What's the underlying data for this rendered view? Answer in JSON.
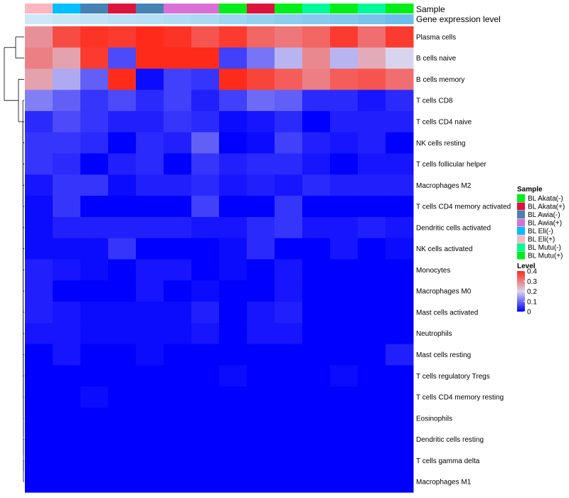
{
  "chart_data": {
    "type": "heatmap",
    "annotation_labels": [
      "Sample",
      "Gene expression level"
    ],
    "columns": [
      {
        "sample": "BL Eli(+)",
        "gene_expression_level": 0.18
      },
      {
        "sample": "BL Eli(-)",
        "gene_expression_level": 0.22
      },
      {
        "sample": "BL Awia(-)",
        "gene_expression_level": 0.26
      },
      {
        "sample": "BL Akata(+)",
        "gene_expression_level": 0.3
      },
      {
        "sample": "BL Awia(-)",
        "gene_expression_level": 0.34
      },
      {
        "sample": "BL Awia(+)",
        "gene_expression_level": 0.38
      },
      {
        "sample": "BL Awia(+)",
        "gene_expression_level": 0.42
      },
      {
        "sample": "BL Akata(-)",
        "gene_expression_level": 0.5
      },
      {
        "sample": "BL Akata(+)",
        "gene_expression_level": 0.56
      },
      {
        "sample": "BL Akata(-)",
        "gene_expression_level": 0.62
      },
      {
        "sample": "BL Mutu(-)",
        "gene_expression_level": 0.66
      },
      {
        "sample": "BL Akata(-)",
        "gene_expression_level": 0.7
      },
      {
        "sample": "BL Mutu(-)",
        "gene_expression_level": 0.76
      },
      {
        "sample": "BL Mutu(+)",
        "gene_expression_level": 0.84
      }
    ],
    "rows": [
      "Plasma cells",
      "B cells naive",
      "B cells memory",
      "T cells CD8",
      "T cells CD4 naive",
      "NK cells resting",
      "T cells follicular helper",
      "Macrophages M2",
      "T cells CD4 memory activated",
      "Dendritic cells activated",
      "NK cells activated",
      "Monocytes",
      "Macrophages M0",
      "Mast cells activated",
      "Neutrophils",
      "Mast cells resting",
      "T cells regulatory  Tregs",
      "T cells CD4 memory resting",
      "Eosinophils",
      "Dendritic cells resting",
      "T cells gamma delta",
      "Macrophages M1"
    ],
    "values": [
      [
        0.28,
        0.36,
        0.39,
        0.38,
        0.4,
        0.39,
        0.35,
        0.38,
        0.33,
        0.31,
        0.33,
        0.38,
        0.32,
        0.38
      ],
      [
        0.3,
        0.26,
        0.38,
        0.07,
        0.4,
        0.4,
        0.4,
        0.06,
        0.11,
        0.17,
        0.29,
        0.17,
        0.25,
        0.2
      ],
      [
        0.26,
        0.16,
        0.09,
        0.4,
        0.01,
        0.06,
        0.05,
        0.4,
        0.37,
        0.34,
        0.3,
        0.34,
        0.35,
        0.32
      ],
      [
        0.12,
        0.09,
        0.05,
        0.07,
        0.04,
        0.06,
        0.03,
        0.06,
        0.1,
        0.09,
        0.04,
        0.04,
        0.02,
        0.04
      ],
      [
        0.04,
        0.07,
        0.05,
        0.03,
        0.03,
        0.05,
        0.04,
        0.01,
        0.02,
        0.04,
        0.0,
        0.03,
        0.03,
        0.03
      ],
      [
        0.05,
        0.05,
        0.04,
        0.0,
        0.04,
        0.03,
        0.09,
        0.0,
        0.01,
        0.06,
        0.03,
        0.02,
        0.03,
        0.0
      ],
      [
        0.05,
        0.04,
        0.0,
        0.03,
        0.04,
        0.0,
        0.05,
        0.03,
        0.04,
        0.04,
        0.02,
        0.0,
        0.02,
        0.02
      ],
      [
        0.02,
        0.05,
        0.05,
        0.01,
        0.03,
        0.03,
        0.04,
        0.02,
        0.03,
        0.02,
        0.04,
        0.03,
        0.03,
        0.03
      ],
      [
        0.01,
        0.05,
        0.0,
        0.0,
        0.0,
        0.0,
        0.06,
        0.0,
        0.0,
        0.05,
        0.0,
        0.0,
        0.0,
        0.0
      ],
      [
        0.01,
        0.03,
        0.03,
        0.03,
        0.03,
        0.03,
        0.02,
        0.02,
        0.04,
        0.05,
        0.02,
        0.02,
        0.03,
        0.02
      ],
      [
        0.01,
        0.01,
        0.01,
        0.05,
        0.0,
        0.0,
        0.0,
        0.01,
        0.04,
        0.0,
        0.0,
        0.02,
        0.0,
        0.01
      ],
      [
        0.03,
        0.02,
        0.01,
        0.0,
        0.02,
        0.02,
        0.0,
        0.01,
        0.0,
        0.02,
        0.0,
        0.0,
        0.0,
        0.0
      ],
      [
        0.03,
        0.0,
        0.0,
        0.0,
        0.02,
        0.0,
        0.01,
        0.0,
        0.0,
        0.02,
        0.0,
        0.0,
        0.0,
        0.0
      ],
      [
        0.03,
        0.02,
        0.01,
        0.01,
        0.01,
        0.01,
        0.03,
        0.0,
        0.02,
        0.03,
        0.0,
        0.0,
        0.0,
        0.0
      ],
      [
        0.02,
        0.02,
        0.01,
        0.01,
        0.01,
        0.01,
        0.02,
        0.0,
        0.02,
        0.02,
        0.0,
        0.0,
        0.0,
        0.0
      ],
      [
        0.0,
        0.02,
        0.0,
        0.0,
        0.01,
        0.0,
        0.0,
        0.0,
        0.0,
        0.0,
        0.0,
        0.0,
        0.0,
        0.03
      ],
      [
        0.0,
        0.0,
        0.0,
        0.0,
        0.0,
        0.0,
        0.0,
        0.01,
        0.0,
        0.0,
        0.0,
        0.01,
        0.0,
        0.0
      ],
      [
        0.0,
        0.0,
        0.01,
        0.0,
        0.0,
        0.0,
        0.0,
        0.0,
        0.0,
        0.0,
        0.0,
        0.0,
        0.0,
        0.0
      ],
      [
        0.0,
        0.0,
        0.0,
        0.0,
        0.0,
        0.0,
        0.0,
        0.0,
        0.0,
        0.0,
        0.0,
        0.0,
        0.0,
        0.0
      ],
      [
        0.0,
        0.0,
        0.0,
        0.0,
        0.0,
        0.0,
        0.0,
        0.0,
        0.0,
        0.0,
        0.0,
        0.0,
        0.0,
        0.0
      ],
      [
        0.0,
        0.0,
        0.0,
        0.0,
        0.0,
        0.0,
        0.0,
        0.0,
        0.0,
        0.0,
        0.0,
        0.0,
        0.0,
        0.0
      ],
      [
        0.0,
        0.0,
        0.0,
        0.0,
        0.0,
        0.0,
        0.0,
        0.0,
        0.0,
        0.0,
        0.0,
        0.0,
        0.0,
        0.0
      ]
    ],
    "color_scale": {
      "min": 0,
      "max": 0.4,
      "low_color": "#0000ff",
      "mid_color": "#d9d4ee",
      "high_color": "#ff2a1a",
      "mid_value": 0.2
    },
    "gene_expression_scale": {
      "low_color": "#e8f3fa",
      "high_color": "#56b4e9"
    },
    "legends": [
      {
        "title": "Sample",
        "items": [
          {
            "label": "BL Akata(-)",
            "color": "#00ee1a"
          },
          {
            "label": "BL Akata(+)",
            "color": "#dc143c"
          },
          {
            "label": "BL Awia(-)",
            "color": "#4682b4"
          },
          {
            "label": "BL Awia(+)",
            "color": "#da70d6"
          },
          {
            "label": "BL Eli(-)",
            "color": "#00bfff"
          },
          {
            "label": "BL Eli(+)",
            "color": "#ffb6c1"
          },
          {
            "label": "BL Mutu(-)",
            "color": "#00fa9a"
          },
          {
            "label": "BL Mutu(+)",
            "color": "#00ee1a"
          }
        ]
      },
      {
        "title": "Level",
        "ticks": [
          "0.4",
          "0.3",
          "0.2",
          "0.1",
          "0"
        ],
        "tick_values": [
          0.4,
          0.3,
          0.2,
          0.1,
          0
        ]
      }
    ],
    "row_dendrogram": true
  }
}
